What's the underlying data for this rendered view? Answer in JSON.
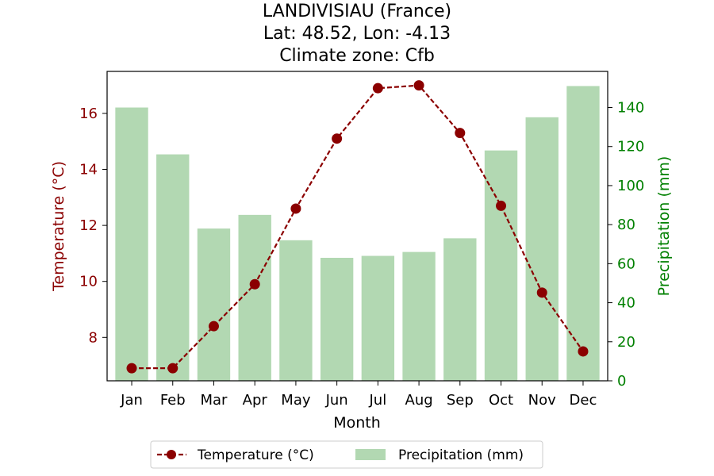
{
  "chart_data": {
    "type": "bar",
    "title_lines": [
      "LANDIVISIAU (France)",
      "Lat: 48.52, Lon: -4.13",
      "Climate zone: Cfb"
    ],
    "categories": [
      "Jan",
      "Feb",
      "Mar",
      "Apr",
      "May",
      "Jun",
      "Jul",
      "Aug",
      "Sep",
      "Oct",
      "Nov",
      "Dec"
    ],
    "xlabel": "Month",
    "series": [
      {
        "name": "Temperature (°C)",
        "type": "line",
        "axis": "left",
        "color": "#8b0000",
        "style": "dashed",
        "marker": "circle",
        "values": [
          6.9,
          6.9,
          8.4,
          9.9,
          12.6,
          15.1,
          16.9,
          17.0,
          15.3,
          12.7,
          9.6,
          7.5
        ]
      },
      {
        "name": "Precipitation (mm)",
        "type": "bar",
        "axis": "right",
        "color": "#b2d8b2",
        "values": [
          140,
          116,
          78,
          85,
          72,
          63,
          64,
          66,
          73,
          118,
          135,
          151
        ]
      }
    ],
    "y_left": {
      "label": "Temperature (°C)",
      "color": "#8b0000",
      "range": [
        6.45,
        17.5
      ],
      "ticks": [
        8,
        10,
        12,
        14,
        16
      ]
    },
    "y_right": {
      "label": "Precipitation (mm)",
      "color": "#008000",
      "range": [
        0,
        158.5
      ],
      "ticks": [
        0,
        20,
        40,
        60,
        80,
        100,
        120,
        140
      ]
    },
    "grid": false,
    "legend": {
      "placement": "bottom-center",
      "entries": [
        "Temperature (°C)",
        "Precipitation (mm)"
      ]
    }
  }
}
